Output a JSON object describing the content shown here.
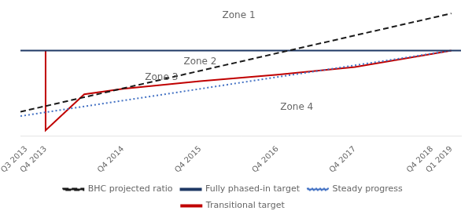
{
  "chart_data": {
    "type": "line",
    "xlim": [
      -0.3,
      22.5
    ],
    "xticks": [
      {
        "value": 0,
        "label": "Q3 2013"
      },
      {
        "value": 1,
        "label": "Q4 2013"
      },
      {
        "value": 5,
        "label": "Q4 2014"
      },
      {
        "value": 9,
        "label": "Q4 2015"
      },
      {
        "value": 13,
        "label": "Q4 2016"
      },
      {
        "value": 17,
        "label": "Q4 2017"
      },
      {
        "value": 21,
        "label": "Q4 2018"
      },
      {
        "value": 22,
        "label": "Q1 2019"
      }
    ],
    "ylim": [
      0.0,
      1.2
    ],
    "tick_labels": "x",
    "grid": false,
    "legend": "bottom",
    "series": [
      {
        "name": "BHC projected ratio",
        "color": "#1a1a1a",
        "line_style": "dashed",
        "x": [
          -0.3,
          22
        ],
        "values": [
          0.22,
          1.12
        ]
      },
      {
        "name": "Fully phased-in target",
        "color": "#1f3864",
        "line_style": "solid",
        "x": [
          -0.3,
          22.5
        ],
        "values": [
          0.78,
          0.78
        ]
      },
      {
        "name": "Steady progress",
        "color": "#4472c4",
        "line_style": "dotted",
        "x": [
          -0.3,
          22
        ],
        "values": [
          0.18,
          0.78
        ]
      },
      {
        "name": "Transitional target",
        "color": "#c00000",
        "line_style": "solid",
        "x": [
          1,
          1,
          3,
          5,
          9,
          13,
          17,
          21,
          22
        ],
        "values": [
          0.78,
          0.05,
          0.38,
          0.43,
          0.5,
          0.56,
          0.63,
          0.75,
          0.78
        ]
      }
    ],
    "annotations": [
      {
        "text": "Zone 1",
        "x": 11,
        "y": 1.1
      },
      {
        "text": "Zone 2",
        "x": 9,
        "y": 0.68
      },
      {
        "text": "Zone 3",
        "x": 7,
        "y": 0.53
      },
      {
        "text": "Zone 4",
        "x": 14,
        "y": 0.26
      }
    ]
  }
}
